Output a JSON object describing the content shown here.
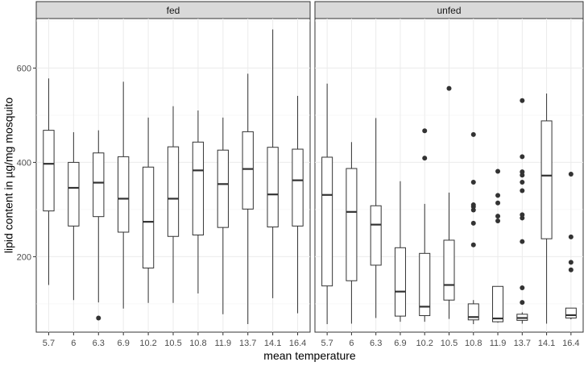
{
  "chart_data": {
    "type": "boxplot",
    "xlabel": "mean temperature",
    "ylabel": "lipid content in µg/mg mosquito",
    "ylim": [
      40,
      705
    ],
    "yticks": [
      200,
      400,
      600
    ],
    "grid": true,
    "categories": [
      "5.7",
      "6",
      "6.3",
      "6.9",
      "10.2",
      "10.5",
      "10.8",
      "11.9",
      "13.7",
      "14.1",
      "16.4"
    ],
    "panels": [
      {
        "name": "fed",
        "boxes": [
          {
            "min": 140,
            "q1": 297,
            "median": 397,
            "q3": 468,
            "max": 578,
            "outliers": []
          },
          {
            "min": 108,
            "q1": 265,
            "median": 346,
            "q3": 400,
            "max": 464,
            "outliers": []
          },
          {
            "min": 103,
            "q1": 285,
            "median": 357,
            "q3": 420,
            "max": 468,
            "outliers": [
              70
            ]
          },
          {
            "min": 90,
            "q1": 252,
            "median": 323,
            "q3": 412,
            "max": 571,
            "outliers": []
          },
          {
            "min": 102,
            "q1": 176,
            "median": 274,
            "q3": 390,
            "max": 495,
            "outliers": []
          },
          {
            "min": 102,
            "q1": 243,
            "median": 323,
            "q3": 433,
            "max": 519,
            "outliers": []
          },
          {
            "min": 122,
            "q1": 246,
            "median": 383,
            "q3": 443,
            "max": 510,
            "outliers": []
          },
          {
            "min": 78,
            "q1": 262,
            "median": 354,
            "q3": 426,
            "max": 495,
            "outliers": []
          },
          {
            "min": 57,
            "q1": 301,
            "median": 386,
            "q3": 465,
            "max": 588,
            "outliers": []
          },
          {
            "min": 112,
            "q1": 263,
            "median": 332,
            "q3": 432,
            "max": 682,
            "outliers": []
          },
          {
            "min": 80,
            "q1": 265,
            "median": 362,
            "q3": 428,
            "max": 541,
            "outliers": []
          }
        ]
      },
      {
        "name": "unfed",
        "boxes": [
          {
            "min": 57,
            "q1": 138,
            "median": 331,
            "q3": 411,
            "max": 567,
            "outliers": []
          },
          {
            "min": 58,
            "q1": 149,
            "median": 295,
            "q3": 387,
            "max": 443,
            "outliers": []
          },
          {
            "min": 70,
            "q1": 182,
            "median": 268,
            "q3": 308,
            "max": 494,
            "outliers": []
          },
          {
            "min": 62,
            "q1": 74,
            "median": 126,
            "q3": 219,
            "max": 360,
            "outliers": []
          },
          {
            "min": 62,
            "q1": 75,
            "median": 94,
            "q3": 207,
            "max": 312,
            "outliers": [
              409,
              467
            ]
          },
          {
            "min": 68,
            "q1": 108,
            "median": 140,
            "q3": 235,
            "max": 336,
            "outliers": [
              557
            ]
          },
          {
            "min": 57,
            "q1": 66,
            "median": 72,
            "q3": 100,
            "max": 108,
            "outliers": [
              225,
              271,
              299,
              306,
              310,
              358,
              459
            ]
          },
          {
            "min": 60,
            "q1": 62,
            "median": 69,
            "q3": 137,
            "max": 137,
            "outliers": [
              276,
              286,
              314,
              330,
              381
            ]
          },
          {
            "min": 58,
            "q1": 65,
            "median": 70,
            "q3": 78,
            "max": 82,
            "outliers": [
              103,
              134,
              232,
              282,
              289,
              340,
              358,
              373,
              380,
              412,
              531
            ]
          },
          {
            "min": 58,
            "q1": 238,
            "median": 372,
            "q3": 488,
            "max": 546,
            "outliers": []
          },
          {
            "min": 67,
            "q1": 70,
            "median": 76,
            "q3": 91,
            "max": 91,
            "outliers": [
              172,
              188,
              242,
              375
            ]
          }
        ]
      }
    ]
  }
}
